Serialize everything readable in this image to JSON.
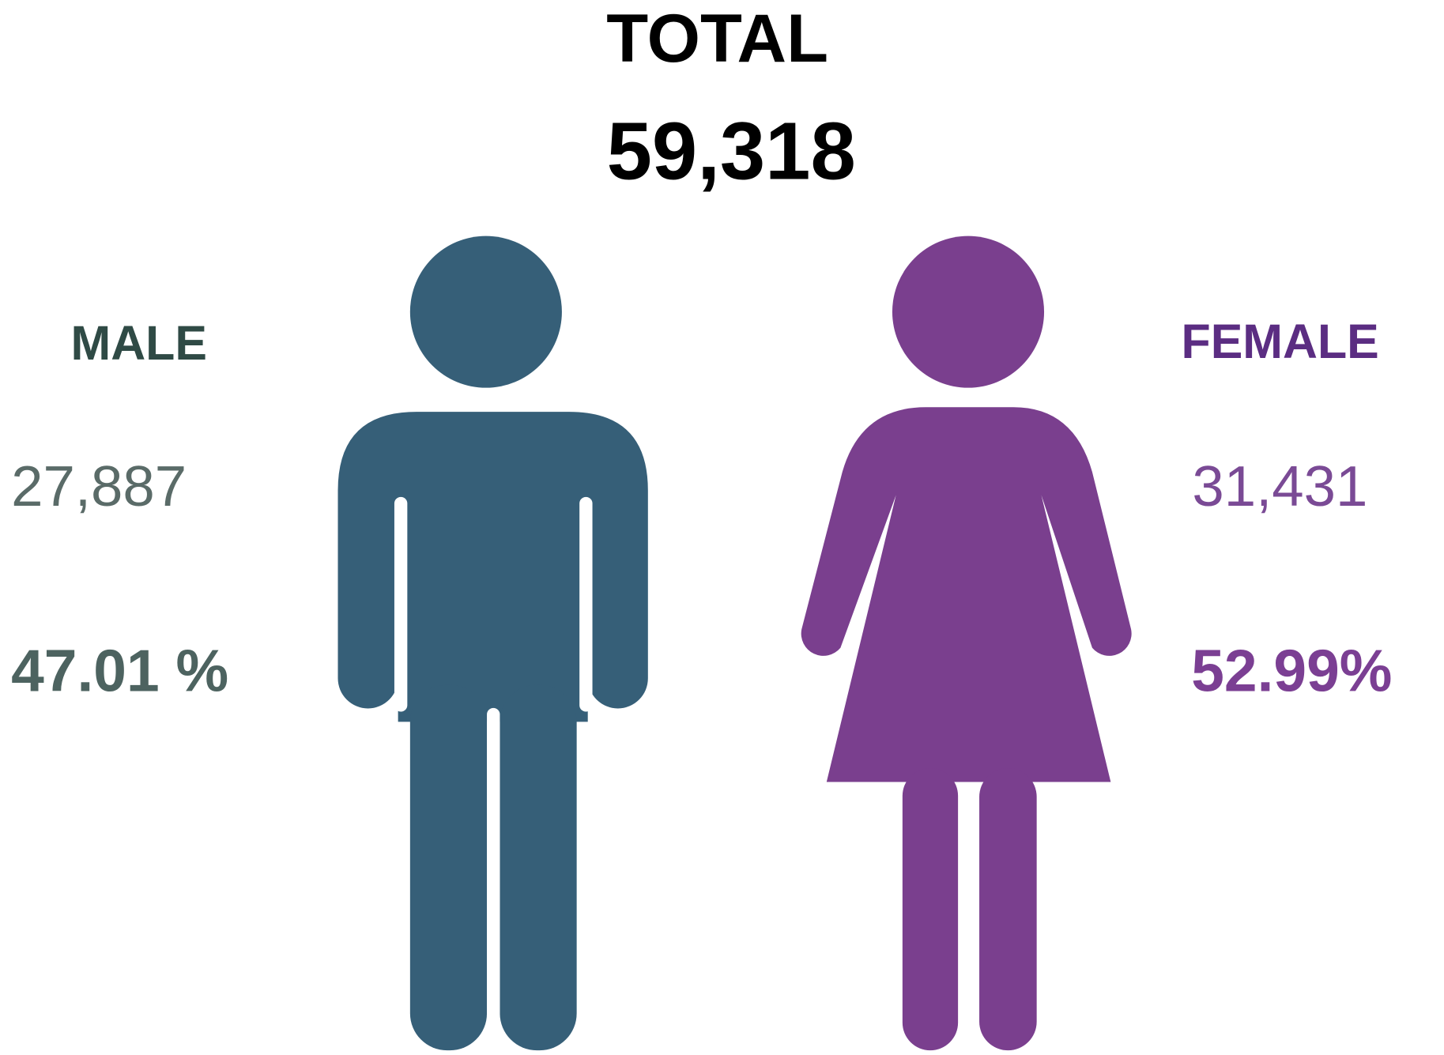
{
  "total": {
    "label": "TOTAL",
    "value": "59,318"
  },
  "male": {
    "label": "MALE",
    "count": "27,887",
    "percent": "47.01 %"
  },
  "female": {
    "label": "FEMALE",
    "count": "31,431",
    "percent": "52.99%"
  }
}
